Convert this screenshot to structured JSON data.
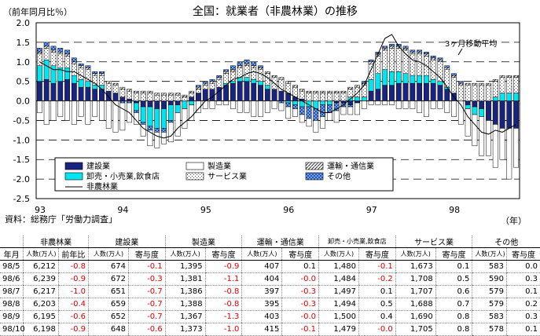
{
  "chart_data": {
    "type": "bar",
    "title": "全国：就業者（非農林業）の推移",
    "ylabel": "（前年同月比％）",
    "xlabel": "（年）",
    "ylim": [
      -2.5,
      2.0
    ],
    "yticks": [
      "2.0",
      "1.5",
      "1.0",
      "0.5",
      "0.0",
      "-0.5",
      "-1.0",
      "-1.5",
      "-2.0",
      "-2.5"
    ],
    "year_labels": [
      "93",
      "94",
      "95",
      "96",
      "97",
      "98"
    ],
    "ma_label": "3ヶ月移動平均",
    "legend": {
      "kensetsu": "建設業",
      "seizou": "製造業",
      "unyu": "運輸・通信業",
      "oroshi": "卸売・小売業,飲食店",
      "service": "サービス業",
      "sonota": "その他",
      "hinourin": "非農林業"
    },
    "colors": {
      "kensetsu": "#1a237e",
      "oroshi": "#00e5ee",
      "service": "#ffffff",
      "sonota": "#7fb8ff",
      "unyu": "#dddddd",
      "line": "#000000"
    },
    "months": 70,
    "series": [
      {
        "name": "建設業",
        "values": [
          0.5,
          0.55,
          0.45,
          0.5,
          0.55,
          0.45,
          0.35,
          0.35,
          0.3,
          0.3,
          0.25,
          0.2,
          0.1,
          0.05,
          -0.05,
          -0.15,
          -0.15,
          -0.2,
          -0.2,
          -0.1,
          -0.1,
          0.0,
          0.1,
          0.2,
          0.3,
          0.3,
          0.35,
          0.4,
          0.45,
          0.5,
          0.5,
          0.45,
          0.4,
          0.3,
          0.3,
          0.25,
          0.2,
          0.1,
          0.05,
          0.0,
          0.0,
          0.0,
          0.0,
          -0.05,
          -0.05,
          -0.1,
          -0.05,
          0.0,
          0.25,
          0.3,
          0.4,
          0.4,
          0.45,
          0.45,
          0.45,
          0.45,
          0.45,
          0.45,
          0.4,
          0.3,
          0.2,
          0.0,
          -0.1,
          -0.15,
          -0.2,
          -0.5,
          -0.6,
          -0.7,
          -0.7,
          -0.7
        ]
      },
      {
        "name": "卸売・小売業,飲食店",
        "values": [
          0.4,
          0.5,
          0.45,
          0.35,
          0.3,
          0.2,
          0.2,
          0.15,
          0.1,
          0.1,
          0.0,
          0.0,
          0.0,
          0.0,
          -0.2,
          -0.4,
          -0.5,
          -0.5,
          -0.5,
          -0.4,
          -0.2,
          -0.2,
          -0.1,
          0.0,
          0.0,
          0.0,
          0.0,
          0.05,
          0.05,
          0.1,
          0.1,
          0.1,
          0.1,
          0.1,
          0.0,
          0.0,
          -0.05,
          -0.1,
          -0.15,
          -0.15,
          -0.2,
          -0.1,
          -0.1,
          0.0,
          0.0,
          0.1,
          0.1,
          0.1,
          0.3,
          0.4,
          0.4,
          0.35,
          0.3,
          0.25,
          0.2,
          0.2,
          0.2,
          0.1,
          0.1,
          0.05,
          0.0,
          0.0,
          -0.1,
          -0.2,
          -0.2,
          0.0,
          0.1,
          0.2,
          0.2,
          0.2
        ]
      },
      {
        "name": "サービス業",
        "values": [
          0.3,
          0.3,
          0.35,
          0.35,
          0.3,
          0.3,
          0.3,
          0.3,
          0.25,
          0.25,
          0.2,
          0.2,
          0.2,
          0.2,
          0.2,
          0.2,
          0.2,
          0.15,
          0.15,
          0.15,
          0.15,
          0.1,
          0.1,
          0.1,
          0.1,
          0.15,
          0.2,
          0.25,
          0.25,
          0.25,
          0.3,
          0.3,
          0.3,
          0.3,
          0.3,
          0.3,
          0.25,
          0.25,
          0.2,
          0.2,
          0.2,
          0.2,
          0.2,
          0.2,
          0.2,
          0.2,
          0.25,
          0.3,
          0.4,
          0.45,
          0.5,
          0.6,
          0.6,
          0.6,
          0.55,
          0.55,
          0.5,
          0.5,
          0.5,
          0.45,
          0.4,
          0.4,
          0.4,
          0.4,
          0.4,
          0.4,
          0.4,
          0.4,
          0.4,
          0.4
        ]
      },
      {
        "name": "運輸・通信業",
        "values": [
          0.05,
          0.05,
          0.05,
          0.05,
          0.05,
          0.05,
          0.05,
          0.05,
          0.05,
          0.05,
          0.05,
          0.05,
          0.05,
          0.05,
          0.05,
          0.05,
          0.05,
          0.05,
          0.05,
          0.05,
          0.05,
          0.05,
          0.05,
          0.05,
          0.05,
          0.05,
          0.05,
          0.05,
          0.05,
          0.05,
          0.05,
          0.05,
          0.05,
          0.05,
          0.05,
          0.05,
          0.05,
          0.05,
          0.05,
          0.05,
          0.05,
          0.05,
          0.05,
          0.05,
          0.05,
          0.05,
          0.05,
          0.05,
          0.05,
          0.05,
          0.05,
          0.05,
          0.05,
          0.05,
          0.05,
          0.05,
          0.05,
          0.05,
          0.05,
          0.05,
          0.05,
          0.05,
          0.05,
          0.05,
          0.05,
          0.05,
          0.05,
          0.05,
          0.05,
          0.05
        ]
      },
      {
        "name": "その他",
        "values": [
          0.1,
          0.1,
          0.1,
          0.1,
          0.1,
          0.1,
          0.05,
          0.05,
          0.05,
          0.05,
          0.0,
          0.0,
          -0.05,
          -0.05,
          -0.05,
          -0.05,
          -0.1,
          -0.1,
          -0.1,
          -0.05,
          0.0,
          0.0,
          0.0,
          0.05,
          0.05,
          0.05,
          0.05,
          0.05,
          0.1,
          0.1,
          0.1,
          0.1,
          0.05,
          0.0,
          0.0,
          -0.05,
          -0.1,
          -0.1,
          -0.2,
          -0.3,
          -0.3,
          -0.3,
          -0.2,
          -0.2,
          -0.1,
          -0.05,
          0.0,
          0.05,
          0.05,
          0.05,
          0.05,
          0.05,
          0.05,
          0.05,
          0.05,
          0.05,
          0.05,
          0.05,
          0.05,
          0.05,
          0.05,
          0.05,
          0.0,
          0.0,
          0.0,
          0.0,
          0.0,
          0.0,
          0.0,
          0.0
        ]
      },
      {
        "name": "製造業",
        "values": [
          -0.3,
          -0.6,
          -0.5,
          -0.4,
          -0.5,
          -0.6,
          -0.4,
          -0.6,
          -0.4,
          -0.5,
          -0.7,
          -0.8,
          -0.7,
          -0.5,
          -0.3,
          -0.3,
          -0.4,
          -0.4,
          -0.3,
          -0.5,
          -0.6,
          -0.5,
          -0.4,
          -0.3,
          -0.2,
          -0.2,
          -0.1,
          -0.1,
          -0.2,
          -0.3,
          -0.3,
          -0.4,
          -0.4,
          -0.3,
          -0.2,
          -0.2,
          -0.3,
          -0.2,
          -0.2,
          -0.2,
          -0.3,
          -0.3,
          -0.2,
          -0.3,
          -0.2,
          -0.2,
          -0.3,
          -0.2,
          -0.1,
          -0.1,
          -0.1,
          -0.1,
          -0.2,
          -0.2,
          -0.2,
          -0.3,
          -0.4,
          -0.2,
          -0.2,
          -0.3,
          -0.4,
          -0.6,
          -0.7,
          -0.8,
          -1.0,
          -0.9,
          -1.1,
          -0.8,
          -1.3,
          -1.0
        ]
      },
      {
        "name": "非農林業",
        "values": [
          1.0,
          0.9,
          0.8,
          0.8,
          0.75,
          0.75,
          0.65,
          0.55,
          0.45,
          0.3,
          0.1,
          -0.1,
          -0.2,
          -0.3,
          -0.5,
          -0.7,
          -0.8,
          -0.9,
          -0.95,
          -0.9,
          -0.7,
          -0.55,
          -0.4,
          -0.2,
          0.0,
          0.1,
          0.25,
          0.4,
          0.55,
          0.6,
          0.7,
          0.75,
          0.7,
          0.6,
          0.45,
          0.3,
          0.2,
          0.1,
          0.0,
          -0.1,
          -0.2,
          -0.3,
          -0.3,
          -0.2,
          -0.1,
          0.05,
          0.2,
          0.4,
          0.8,
          1.2,
          1.6,
          1.7,
          1.4,
          1.2,
          1.05,
          1.0,
          0.9,
          0.75,
          0.6,
          0.35,
          0.1,
          -0.1,
          -0.4,
          -0.6,
          -0.8,
          -0.85,
          -0.75,
          -0.8,
          -0.7,
          -0.6
        ]
      }
    ]
  },
  "source": "資料：総務庁「労働力調査」",
  "table": {
    "headers": [
      "非農林業",
      "建設業",
      "製造業",
      "運輸・通信業",
      "卸売・小売業,飲食店",
      "サービス業",
      "その他"
    ],
    "sub": {
      "month": "年月",
      "count": "人数(万人)",
      "ratio": "前年比",
      "contrib": "寄与度"
    },
    "rows": [
      {
        "m": "98/5",
        "v": [
          "6,212",
          "-0.8",
          "674",
          "-0.1",
          "1,395",
          "-0.9",
          "407",
          "0.1",
          "1,480",
          "-0.1",
          "1,673",
          "0.1",
          "583",
          "0.0"
        ]
      },
      {
        "m": "98/6",
        "v": [
          "6,239",
          "-0.9",
          "672",
          "-0.3",
          "1,381",
          "-1.1",
          "404",
          "-0.0",
          "1,484",
          "-0.2",
          "1,708",
          "0.5",
          "590",
          "0.3"
        ]
      },
      {
        "m": "98/7",
        "v": [
          "6,217",
          "-1.0",
          "651",
          "-0.7",
          "1,386",
          "-0.8",
          "397",
          "-0.3",
          "1,497",
          "0.1",
          "1,707",
          "0.6",
          "579",
          "0.1"
        ]
      },
      {
        "m": "98/8",
        "v": [
          "6,203",
          "-0.4",
          "659",
          "-0.7",
          "1,388",
          "-0.8",
          "395",
          "-0.3",
          "1,494",
          "0.5",
          "1,688",
          "0.7",
          "579",
          "0.2"
        ]
      },
      {
        "m": "98/9",
        "v": [
          "6,195",
          "-0.6",
          "652",
          "-0.7",
          "1,367",
          "-1.3",
          "403",
          "-0.0",
          "1,500",
          "0.4",
          "1,690",
          "0.8",
          "583",
          "0.3"
        ]
      },
      {
        "m": "98/10",
        "v": [
          "6,198",
          "-0.9",
          "648",
          "-0.6",
          "1,373",
          "-1.0",
          "415",
          "-0.1",
          "1,479",
          "-0.0",
          "1,705",
          "0.8",
          "578",
          "0.1"
        ]
      }
    ]
  }
}
